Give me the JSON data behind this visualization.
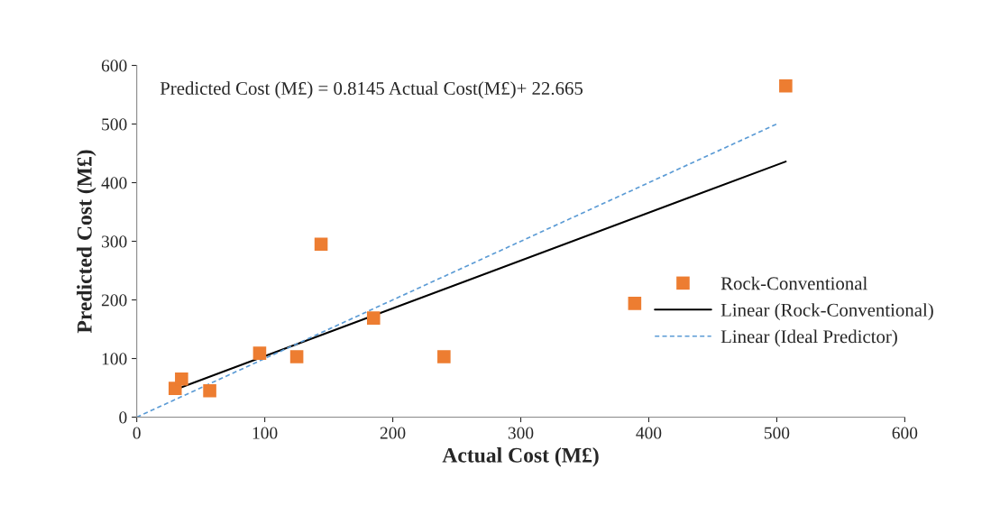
{
  "chart_data": {
    "type": "scatter",
    "xlabel": "Actual Cost (M£)",
    "ylabel": "Predicted Cost (M£)",
    "annotations": [
      "Predicted Cost (M£) = 0.8145 Actual Cost(M£)+ 22.665"
    ],
    "xlim": [
      0,
      600
    ],
    "xticks": [
      0,
      100,
      200,
      300,
      400,
      500,
      600
    ],
    "ylim": [
      0,
      600
    ],
    "yticks": [
      0,
      100,
      200,
      300,
      400,
      500,
      600
    ],
    "grid": false,
    "legend": "right",
    "series": [
      {
        "name": "Rock-Conventional",
        "marker": "square",
        "color": "#ed7d31",
        "x": [
          30,
          35,
          57,
          96,
          125,
          144,
          185,
          240,
          389,
          507
        ],
        "values": [
          49,
          65,
          45,
          109,
          103,
          295,
          169,
          103,
          194,
          565
        ]
      },
      {
        "name": "Linear (Rock-Conventional)",
        "type": "line",
        "line_style": "solid",
        "color": "#000000",
        "x": [
          30,
          507
        ],
        "values": [
          47,
          436
        ]
      },
      {
        "name": "Linear (Ideal Predictor)",
        "type": "line",
        "line_style": "dashed",
        "color": "#5b9bd5",
        "x": [
          0,
          500
        ],
        "values": [
          0,
          500
        ]
      }
    ]
  }
}
